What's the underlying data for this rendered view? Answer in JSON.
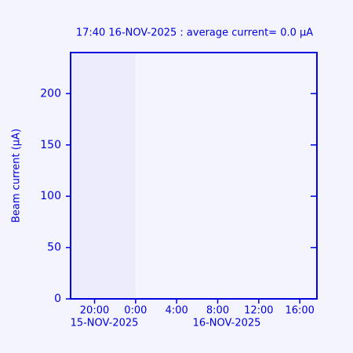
{
  "chart_data": {
    "type": "line",
    "title": "17:40   16-NOV-2025 : average current=    0.0 μA",
    "y_label": "Beam current  (μA)",
    "x": [],
    "values": [],
    "color": "#0000e0",
    "xlim": [
      17.667,
      41.667
    ],
    "xticks": [
      {
        "value": 20,
        "label": "20:00"
      },
      {
        "value": 24,
        "label": "0:00"
      },
      {
        "value": 28,
        "label": "4:00"
      },
      {
        "value": 32,
        "label": "8:00"
      },
      {
        "value": 36,
        "label": "12:00"
      },
      {
        "value": 40,
        "label": "16:00"
      }
    ],
    "x_date_labels": [
      "15-NOV-2025",
      "16-NOV-2025"
    ],
    "ylim": [
      0,
      240
    ],
    "yticks": [
      0,
      50,
      100,
      150,
      200
    ]
  }
}
